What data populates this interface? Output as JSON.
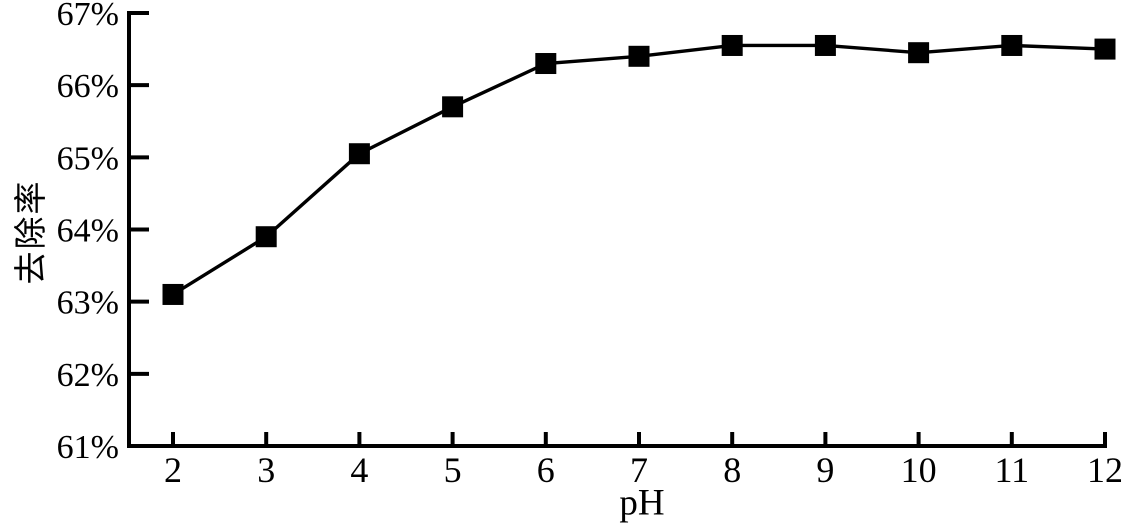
{
  "page": {
    "background": "#ffffff",
    "foreground": "#000000"
  },
  "chart_data": {
    "type": "line",
    "title": "",
    "xlabel": "pH",
    "ylabel": "去除率",
    "x": [
      2,
      3,
      4,
      5,
      6,
      7,
      8,
      9,
      10,
      11,
      12
    ],
    "x_tick_labels": [
      "2",
      "3",
      "4",
      "5",
      "6",
      "7",
      "8",
      "9",
      "10",
      "11",
      "12"
    ],
    "y_ticks": [
      61,
      62,
      63,
      64,
      65,
      66,
      67
    ],
    "y_tick_labels": [
      "61%",
      "62%",
      "63%",
      "64%",
      "65%",
      "66%",
      "67%"
    ],
    "ylim": [
      61,
      67
    ],
    "xlim": [
      1.5,
      12
    ],
    "grid": false,
    "legend": "none",
    "marker": "filled-square",
    "line_color": "#000000",
    "marker_color": "#000000",
    "axis_color": "#000000",
    "series": [
      {
        "name": "去除率",
        "values": [
          63.1,
          63.9,
          65.05,
          65.7,
          66.3,
          66.4,
          66.55,
          66.55,
          66.45,
          66.55,
          66.5
        ]
      }
    ]
  }
}
